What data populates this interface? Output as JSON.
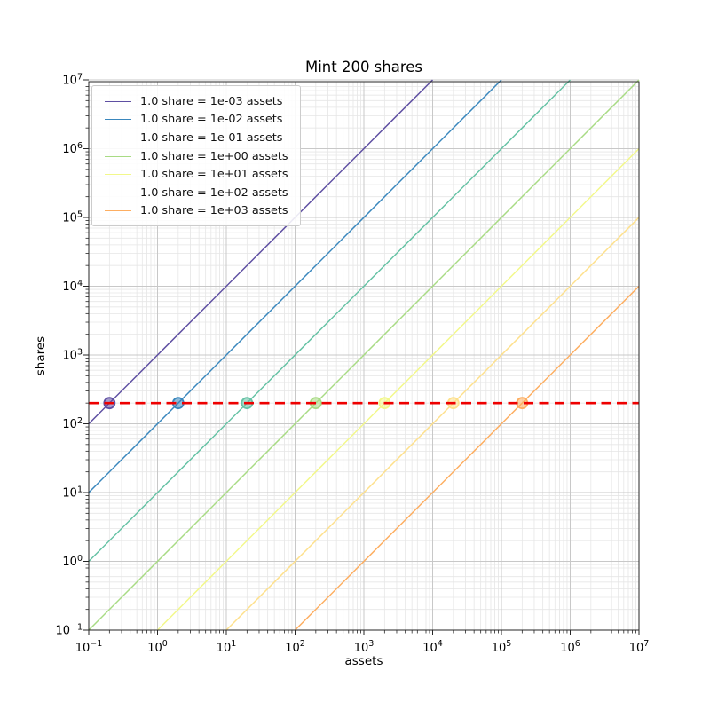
{
  "chart_data": {
    "type": "line",
    "title": "Mint 200 shares",
    "xlabel": "assets",
    "ylabel": "shares",
    "xscale": "log",
    "yscale": "log",
    "xlim": [
      0.1,
      10000000
    ],
    "ylim": [
      0.1,
      10000000
    ],
    "x_tick_exponents": [
      -1,
      0,
      1,
      2,
      3,
      4,
      5,
      6,
      7
    ],
    "y_tick_exponents": [
      -1,
      0,
      1,
      2,
      3,
      4,
      5,
      6,
      7
    ],
    "grid": "both",
    "legend_position": "upper left",
    "target_line": {
      "shares": 200,
      "color": "#ee0000",
      "style": "dashed"
    },
    "series": [
      {
        "label": "1.0 share = 1e-03 assets",
        "assets_per_share": 0.001,
        "color": "#5e4fa2",
        "intersection": {
          "assets": 0.2,
          "shares": 200
        }
      },
      {
        "label": "1.0 share = 1e-02 assets",
        "assets_per_share": 0.01,
        "color": "#3a87bd",
        "intersection": {
          "assets": 2,
          "shares": 200
        }
      },
      {
        "label": "1.0 share = 1e-01 assets",
        "assets_per_share": 0.1,
        "color": "#66c2a5",
        "intersection": {
          "assets": 20,
          "shares": 200
        }
      },
      {
        "label": "1.0 share = 1e+00 assets",
        "assets_per_share": 1,
        "color": "#a8db84",
        "intersection": {
          "assets": 200,
          "shares": 200
        }
      },
      {
        "label": "1.0 share = 1e+01 assets",
        "assets_per_share": 10,
        "color": "#f2f88a",
        "intersection": {
          "assets": 2000,
          "shares": 200
        }
      },
      {
        "label": "1.0 share = 1e+02 assets",
        "assets_per_share": 100,
        "color": "#fee08b",
        "intersection": {
          "assets": 20000,
          "shares": 200
        }
      },
      {
        "label": "1.0 share = 1e+03 assets",
        "assets_per_share": 1000,
        "color": "#fdae61",
        "intersection": {
          "assets": 200000,
          "shares": 200
        }
      }
    ]
  }
}
